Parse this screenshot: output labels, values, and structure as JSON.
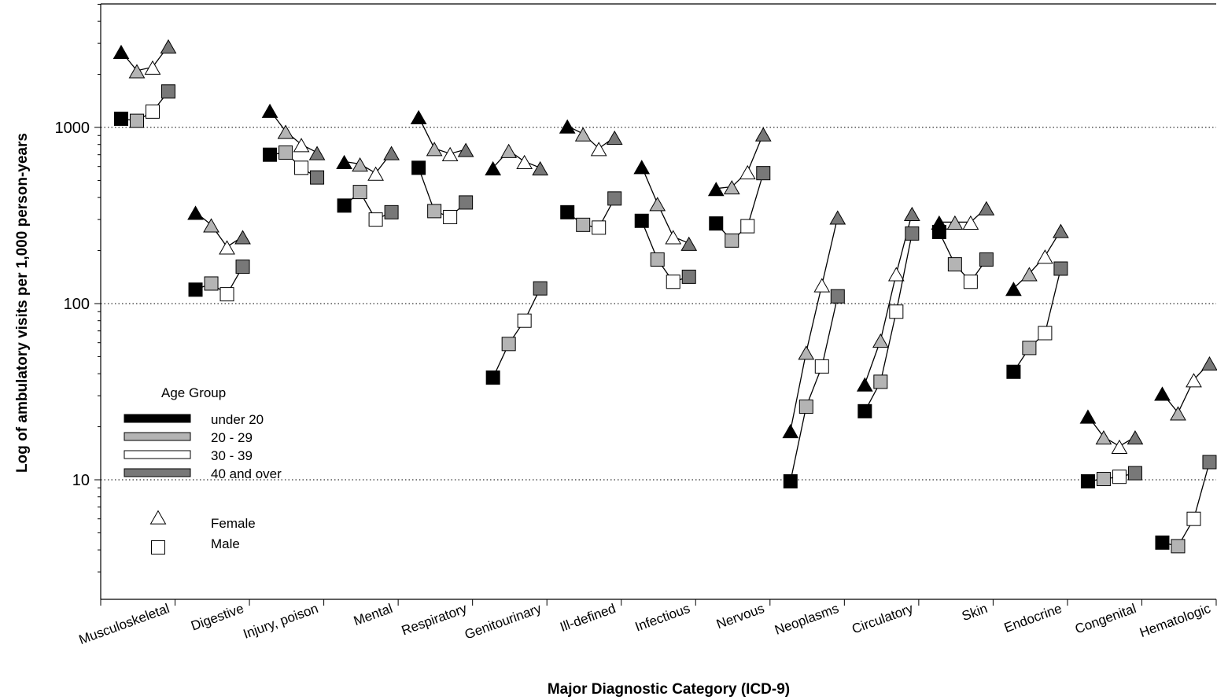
{
  "chart_data": {
    "type": "line",
    "xlabel": "Major Diagnostic Category (ICD-9)",
    "ylabel": "Log of ambulatory visits per 1,000 person-years",
    "yscale": "log",
    "ylim": [
      2,
      5000
    ],
    "yticks": [
      10,
      100,
      1000
    ],
    "grid": "dotted horizontal at 10, 100, 1000",
    "categories": [
      "Musculoskeletal",
      "Digestive",
      "Injury, poison",
      "Mental",
      "Respiratory",
      "Genitourinary",
      "Ill-defined",
      "Infectious",
      "Nervous",
      "Neoplasms",
      "Circulatory",
      "Skin",
      "Endocrine",
      "Congenital",
      "Hematologic"
    ],
    "age_groups": [
      "under 20",
      "20 - 29",
      "30 - 39",
      "40 and over"
    ],
    "age_colors": [
      "#000000",
      "#b4b4b4",
      "#ffffff",
      "#787878"
    ],
    "series": [
      {
        "name": "Female",
        "marker": "triangle",
        "values": [
          [
            2700,
            2100,
            2200,
            2900
          ],
          [
            330,
            280,
            210,
            240
          ],
          [
            1250,
            950,
            800,
            720
          ],
          [
            640,
            620,
            550,
            720
          ],
          [
            1150,
            760,
            710,
            750
          ],
          [
            590,
            740,
            640,
            590
          ],
          [
            1020,
            920,
            760,
            880
          ],
          [
            600,
            370,
            240,
            220
          ],
          [
            450,
            460,
            560,
            920
          ],
          [
            19,
            53,
            128,
            310
          ],
          [
            35,
            62,
            148,
            325
          ],
          [
            290,
            290,
            290,
            350
          ],
          [
            122,
            148,
            186,
            260
          ],
          [
            23,
            17.5,
            15.5,
            17.5
          ],
          [
            31,
            24,
            37,
            46
          ]
        ]
      },
      {
        "name": "Male",
        "marker": "square",
        "values": [
          [
            1120,
            1090,
            1230,
            1600
          ],
          [
            120,
            130,
            113,
            162
          ],
          [
            700,
            720,
            590,
            520
          ],
          [
            360,
            430,
            300,
            330
          ],
          [
            590,
            335,
            310,
            375
          ],
          [
            38,
            59,
            80,
            122
          ],
          [
            330,
            280,
            270,
            395
          ],
          [
            295,
            178,
            133,
            142
          ],
          [
            285,
            228,
            275,
            550
          ],
          [
            9.8,
            26,
            44,
            110
          ],
          [
            24.5,
            36,
            90,
            250
          ],
          [
            255,
            167,
            133,
            178
          ],
          [
            41,
            56,
            68,
            158
          ],
          [
            9.8,
            10.1,
            10.4,
            10.9
          ],
          [
            4.4,
            4.2,
            6,
            12.6
          ]
        ]
      }
    ],
    "legend": {
      "title": "Age Group",
      "age_items": [
        "under 20",
        "20 - 29",
        "30 - 39",
        "40 and over"
      ],
      "sex_items": [
        "Female",
        "Male"
      ],
      "position": "lower-left"
    }
  }
}
